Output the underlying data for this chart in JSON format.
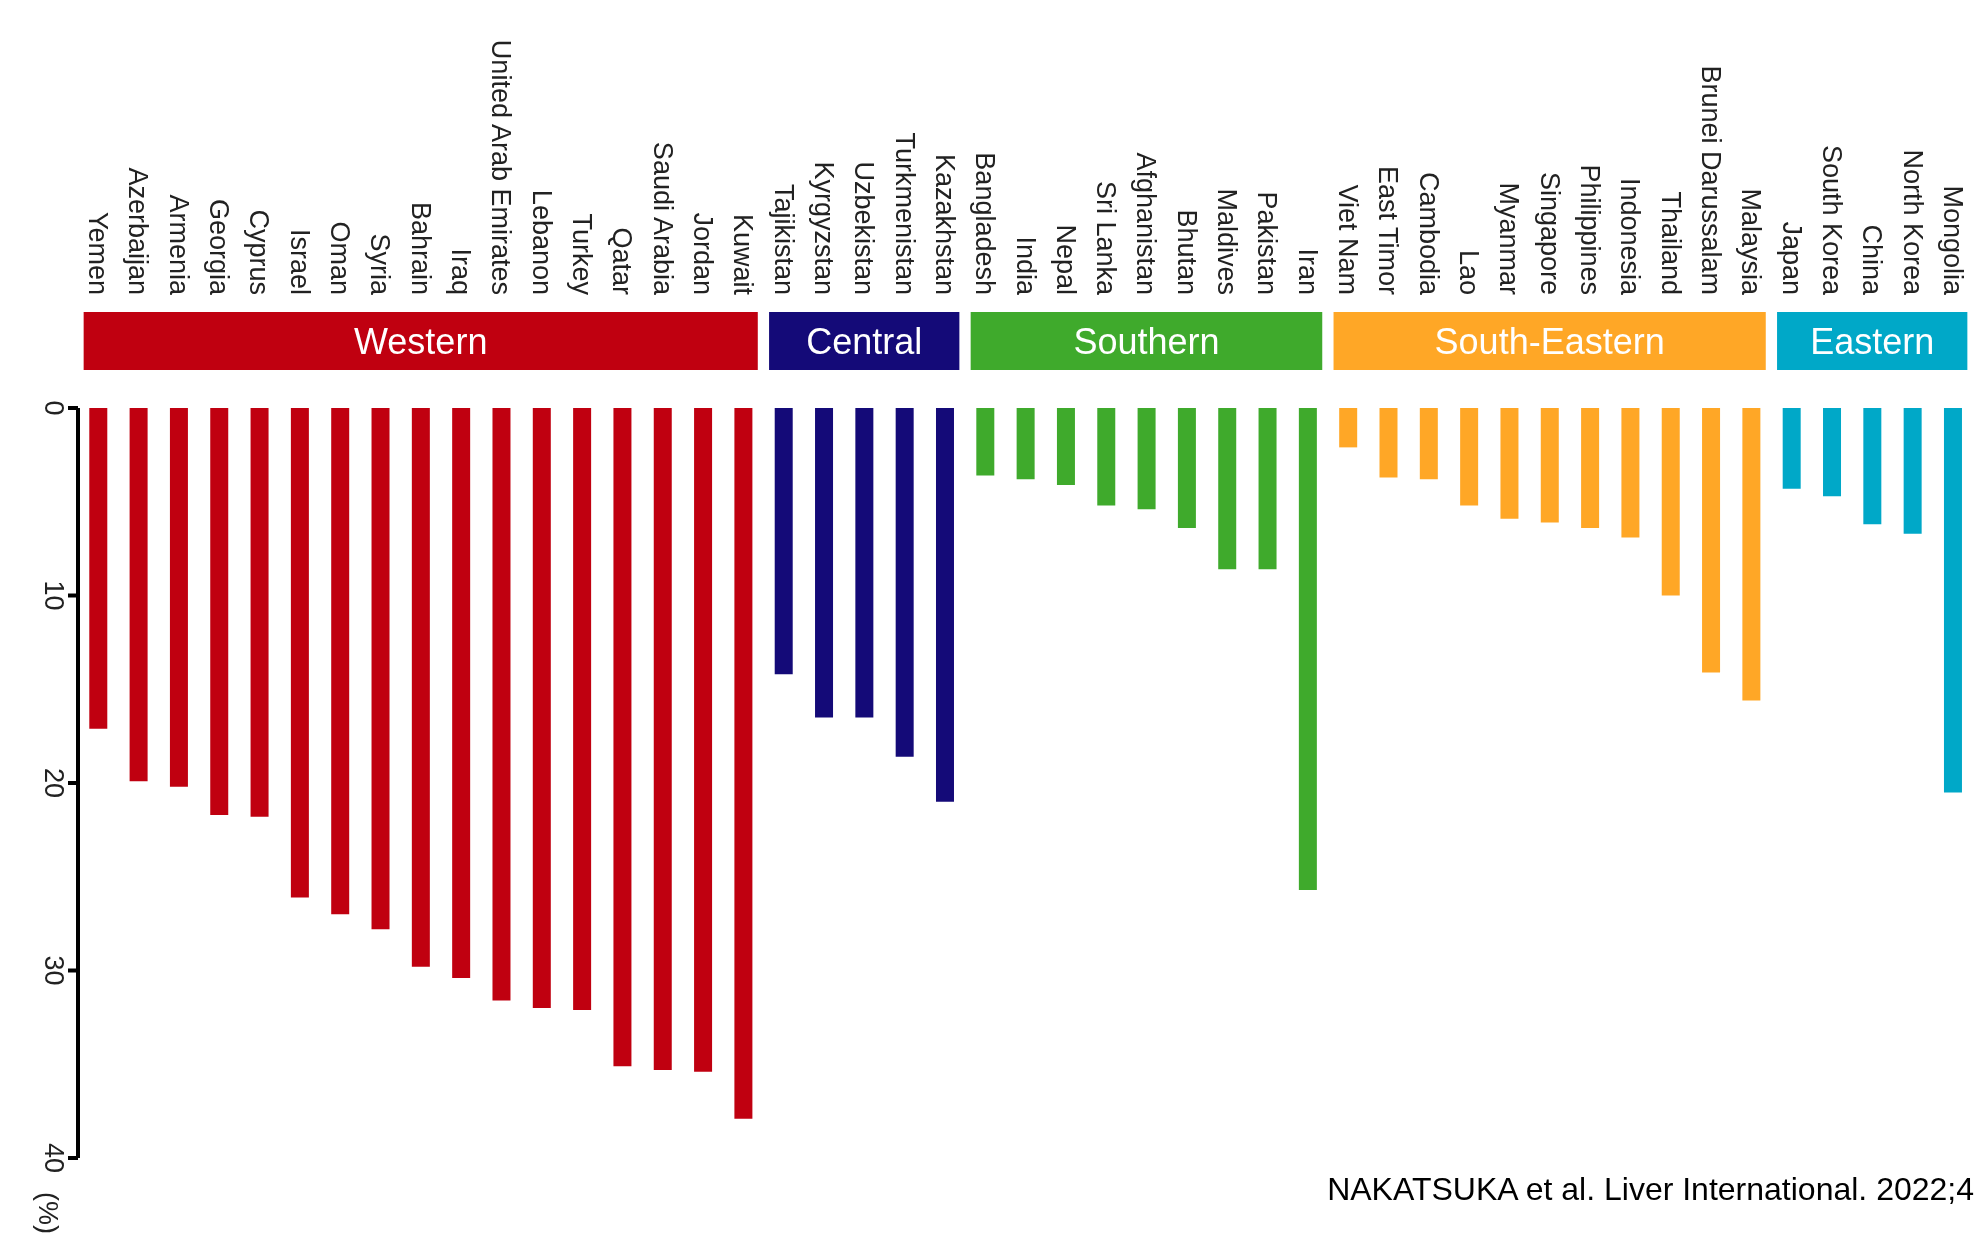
{
  "chart_data": {
    "type": "bar",
    "categories": [
      "Yemen",
      "Azerbaijan",
      "Armenia",
      "Georgia",
      "Cyprus",
      "Israel",
      "Oman",
      "Syria",
      "Bahrain",
      "Iraq",
      "United Arab Emirates",
      "Lebanon",
      "Turkey",
      "Qatar",
      "Saudi Arabia",
      "Jordan",
      "Kuwait",
      "Tajikistan",
      "Kyrgyzstan",
      "Uzbekistan",
      "Turkmenistan",
      "Kazakhstan",
      "Bangladesh",
      "India",
      "Nepal",
      "Sri Lanka",
      "Afghanistan",
      "Bhutan",
      "Maldives",
      "Pakistan",
      "Iran",
      "Viet Nam",
      "East Timor",
      "Cambodia",
      "Lao",
      "Myanmar",
      "Singapore",
      "Philippines",
      "Indonesia",
      "Thailand",
      "Brunei Darussalam",
      "Malaysia",
      "Japan",
      "South Korea",
      "China",
      "North Korea",
      "Mongolia"
    ],
    "values": [
      17.1,
      19.9,
      20.2,
      21.7,
      21.8,
      26.1,
      27.0,
      27.8,
      29.8,
      30.4,
      31.6,
      32.0,
      32.1,
      35.1,
      35.3,
      35.4,
      37.9,
      14.2,
      16.5,
      16.5,
      18.6,
      21.0,
      3.6,
      3.8,
      4.1,
      5.2,
      5.4,
      6.4,
      8.6,
      8.6,
      25.7,
      2.1,
      3.7,
      3.8,
      5.2,
      5.9,
      6.1,
      6.4,
      6.9,
      10.0,
      14.1,
      15.6,
      4.3,
      4.7,
      6.2,
      6.7,
      20.5
    ],
    "colors": [
      "#c00010",
      "#c00010",
      "#c00010",
      "#c00010",
      "#c00010",
      "#c00010",
      "#c00010",
      "#c00010",
      "#c00010",
      "#c00010",
      "#c00010",
      "#c00010",
      "#c00010",
      "#c00010",
      "#c00010",
      "#c00010",
      "#c00010",
      "#140a78",
      "#140a78",
      "#140a78",
      "#140a78",
      "#140a78",
      "#3faa2c",
      "#3faa2c",
      "#3faa2c",
      "#3faa2c",
      "#3faa2c",
      "#3faa2c",
      "#3faa2c",
      "#3faa2c",
      "#3faa2c",
      "#ffa726",
      "#ffa726",
      "#ffa726",
      "#ffa726",
      "#ffa726",
      "#ffa726",
      "#ffa726",
      "#ffa726",
      "#ffa726",
      "#ffa726",
      "#ffa726",
      "#00a8c8",
      "#00a8c8",
      "#00a8c8",
      "#00a8c8",
      "#00a8c8"
    ],
    "ylim": [
      40,
      0
    ],
    "yticks": [
      0,
      10,
      20,
      30,
      40
    ],
    "ylabel": "(%)",
    "annotations": [
      "Western",
      "Central",
      "Southern",
      "South-Eastern",
      "Eastern",
      "NAKATSUKA et al. Liver International. 2022;4"
    ]
  }
}
